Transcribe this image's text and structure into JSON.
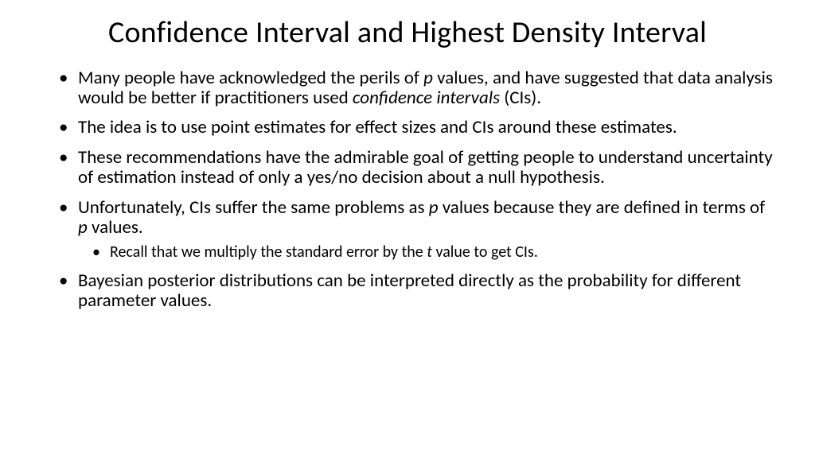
{
  "slide": {
    "title": "Confidence Interval and Highest Density Interval",
    "bullets": [
      {
        "segments": [
          {
            "t": "Many people have acknowledged the perils of ",
            "i": false
          },
          {
            "t": "p",
            "i": true
          },
          {
            "t": " values, and have suggested that data analysis would be better if practitioners used ",
            "i": false
          },
          {
            "t": "confidence intervals",
            "i": true
          },
          {
            "t": " (CIs).",
            "i": false
          }
        ]
      },
      {
        "segments": [
          {
            "t": "The idea is to use point estimates for effect sizes and CIs around these estimates.",
            "i": false
          }
        ]
      },
      {
        "segments": [
          {
            "t": "These recommendations have the admirable goal of getting people to understand uncertainty of estimation instead of only a yes/no decision about a null hypothesis.",
            "i": false
          }
        ]
      },
      {
        "segments": [
          {
            "t": "Unfortunately, CIs suffer the same problems as ",
            "i": false
          },
          {
            "t": "p",
            "i": true
          },
          {
            "t": " values because they are defined in terms of ",
            "i": false
          },
          {
            "t": "p",
            "i": true
          },
          {
            "t": " values.",
            "i": false
          }
        ],
        "sub": [
          {
            "segments": [
              {
                "t": "Recall that we multiply the standard error by the ",
                "i": false
              },
              {
                "t": "t",
                "i": true
              },
              {
                "t": " value to get CIs.",
                "i": false
              }
            ]
          }
        ]
      },
      {
        "segments": [
          {
            "t": "Bayesian posterior distributions can be interpreted directly as the probability for different parameter values.",
            "i": false
          }
        ]
      }
    ]
  },
  "style": {
    "background_color": "#ffffff",
    "text_color": "#000000",
    "title_fontsize": 38,
    "bullet_fontsize": 23,
    "sub_bullet_fontsize": 20,
    "font_family": "Calibri"
  }
}
